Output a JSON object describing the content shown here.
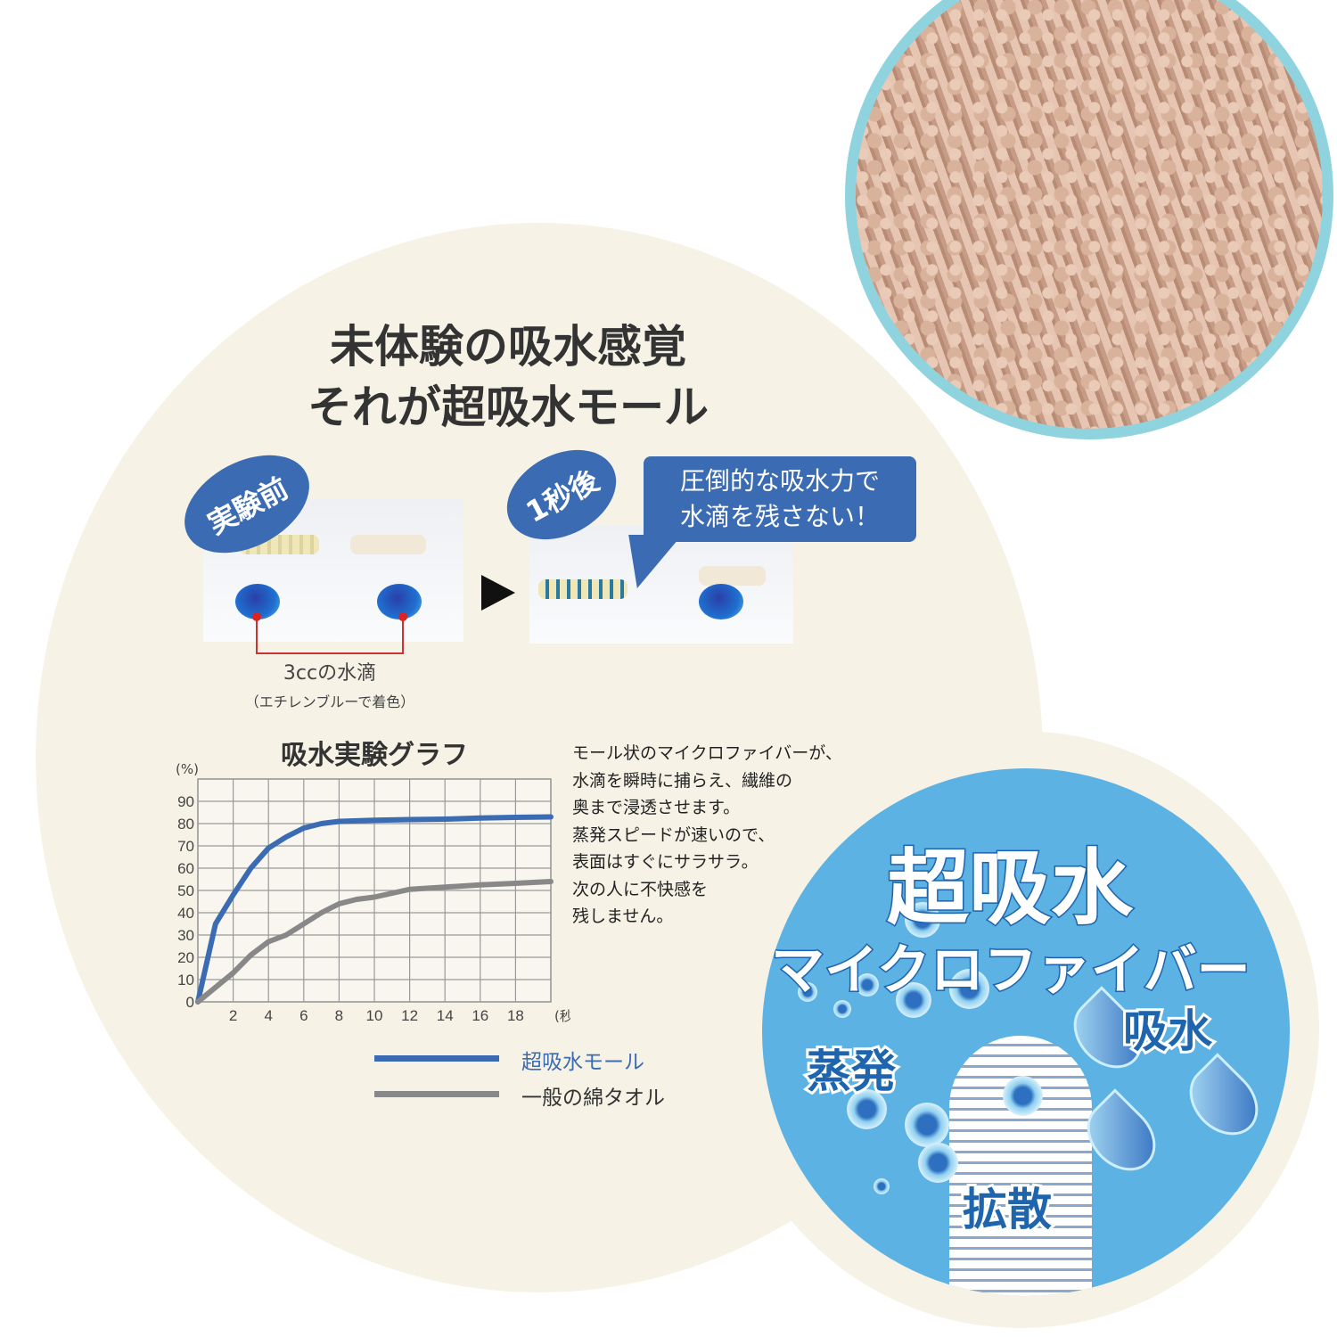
{
  "headline": {
    "line1": "未体験の吸水感覚",
    "line2": "それが超吸水モール"
  },
  "experiment": {
    "before_badge": "実験前",
    "after_badge": "1秒後",
    "callout_line1": "圧倒的な吸水力で",
    "callout_line2": "水滴を残さない！",
    "drop_label": "3ccの水滴",
    "drop_sublabel": "（エチレンブルーで着色）"
  },
  "description": [
    "モール状のマイクロファイバーが、",
    "水滴を瞬時に捕らえ、繊維の",
    "奥まで浸透させます。",
    "蒸発スピードが速いので、",
    "表面はすぐにサラサラ。",
    "次の人に不快感を",
    "残しません。"
  ],
  "badge": {
    "title": "超吸水",
    "subtitle": "マイクロファイバー",
    "label_evaporation": "蒸発",
    "label_absorption": "吸水",
    "label_diffusion": "拡散"
  },
  "colors": {
    "accent_blue": "#3b6cb3",
    "gray_series": "#888888",
    "cream": "#f6f3e6",
    "badge_blue": "#5db2e4"
  },
  "chart_data": {
    "type": "line",
    "title": "吸水実験グラフ",
    "ylabel": "(%)",
    "xlabel": "(秒)",
    "xlim": [
      0,
      20
    ],
    "ylim": [
      0,
      100
    ],
    "xticks": [
      2,
      4,
      6,
      8,
      10,
      12,
      14,
      16,
      18
    ],
    "yticks": [
      0,
      10,
      20,
      30,
      40,
      50,
      60,
      70,
      80,
      90
    ],
    "grid": true,
    "legend_position": "bottom",
    "series": [
      {
        "name": "超吸水モール",
        "color": "#3b6cb3",
        "x": [
          0,
          1,
          2,
          3,
          4,
          5,
          6,
          7,
          8,
          10,
          12,
          14,
          16,
          18,
          20
        ],
        "y": [
          0,
          35,
          48,
          60,
          69,
          74,
          78,
          80,
          81,
          81.5,
          81.8,
          82,
          82.5,
          82.8,
          83
        ]
      },
      {
        "name": "一般の綿タオル",
        "color": "#888888",
        "x": [
          0,
          2,
          3,
          4,
          5,
          6,
          7,
          8,
          9,
          10,
          12,
          14,
          16,
          18,
          20
        ],
        "y": [
          0,
          13,
          21,
          27,
          30,
          35,
          40,
          44,
          46,
          47,
          50.5,
          51.5,
          52.5,
          53.2,
          54
        ]
      }
    ]
  }
}
